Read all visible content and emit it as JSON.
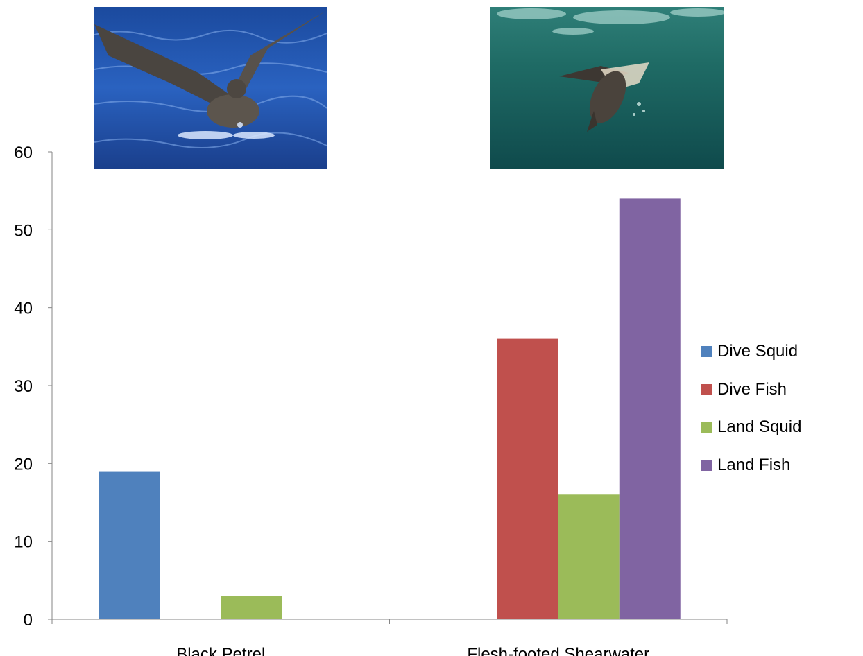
{
  "images": {
    "left_photo": "black-petrel-photo",
    "right_photo": "flesh-footed-shearwater-photo"
  },
  "chart_data": {
    "type": "bar",
    "categories": [
      "Black Petrel",
      "Flesh-footed Shearwater"
    ],
    "series": [
      {
        "name": "Dive Squid",
        "color": "#4F81BD",
        "values": [
          19,
          0
        ]
      },
      {
        "name": "Dive Fish",
        "color": "#C0504D",
        "values": [
          0,
          36
        ]
      },
      {
        "name": "Land Squid",
        "color": "#9BBB59",
        "values": [
          3,
          16
        ]
      },
      {
        "name": "Land Fish",
        "color": "#8064A2",
        "values": [
          0,
          54
        ]
      }
    ],
    "ylim": [
      0,
      60
    ],
    "yticks": [
      "0",
      "10",
      "20",
      "30",
      "40",
      "50",
      "60"
    ],
    "title": "",
    "xlabel": "",
    "ylabel": "",
    "grid": false,
    "legend_position": "right"
  }
}
